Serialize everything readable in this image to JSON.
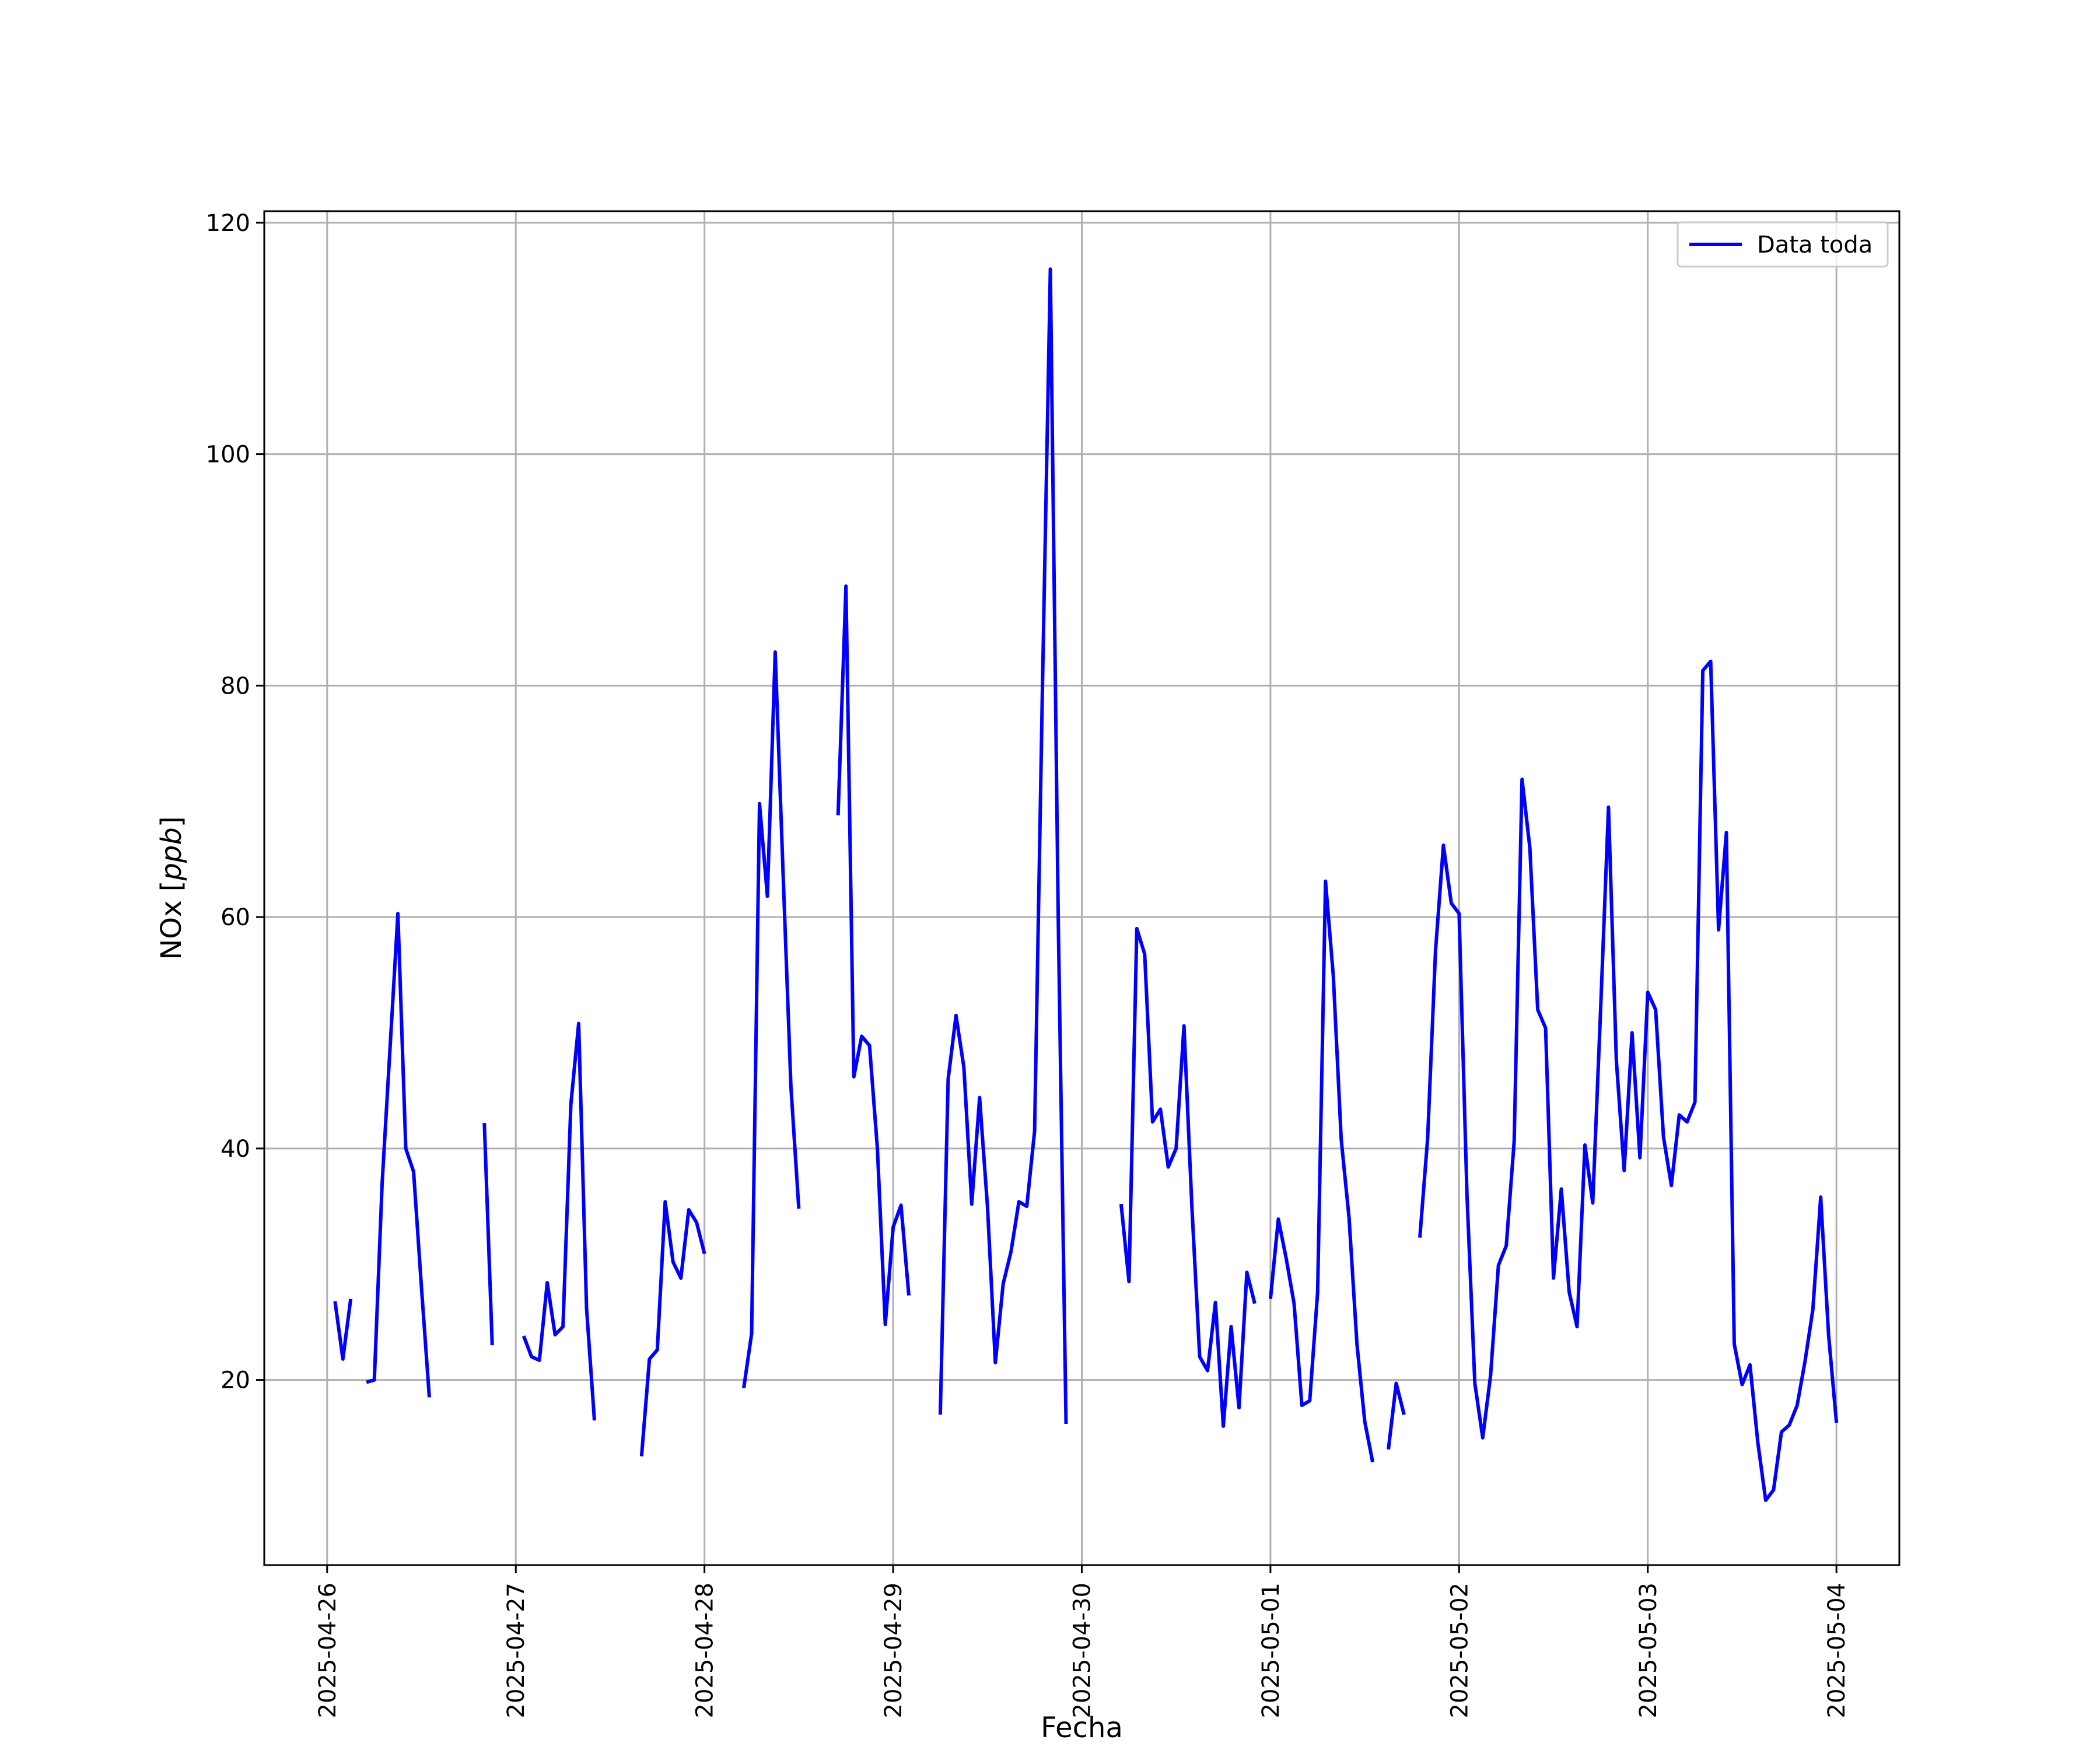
{
  "chart_data": {
    "type": "line",
    "title": "",
    "xlabel": "Fecha",
    "ylabel_main": "NOx [",
    "ylabel_unit": "ppb",
    "ylabel_end": "]",
    "x_ticks": [
      "2025-04-26",
      "2025-04-27",
      "2025-04-28",
      "2025-04-29",
      "2025-04-30",
      "2025-05-01",
      "2025-05-02",
      "2025-05-03",
      "2025-05-04"
    ],
    "y_ticks": [
      20,
      40,
      60,
      80,
      100,
      120
    ],
    "xlim": [
      "2025-04-25T16:00",
      "2025-05-04T08:00"
    ],
    "ylim": [
      4,
      121
    ],
    "grid": true,
    "legend_position": "top-right",
    "line_color": "#0000ff",
    "series": [
      {
        "name": "Data toda",
        "segments": [
          [
            [
              "2025-04-26T01:00",
              26.8
            ],
            [
              "2025-04-26T02:00",
              21.8
            ],
            [
              "2025-04-26T03:00",
              27.0
            ]
          ],
          [
            [
              "2025-04-26T05:00",
              19.8
            ],
            [
              "2025-04-26T06:00",
              20.0
            ],
            [
              "2025-04-26T07:00",
              37.0
            ],
            [
              "2025-04-26T09:00",
              60.3
            ],
            [
              "2025-04-26T10:00",
              40.0
            ],
            [
              "2025-04-26T11:00",
              38.0
            ],
            [
              "2025-04-26T12:00",
              28.0
            ],
            [
              "2025-04-26T13:00",
              18.5
            ]
          ],
          [
            [
              "2025-04-26T20:00",
              42.2
            ],
            [
              "2025-04-26T21:00",
              23.0
            ]
          ],
          [
            [
              "2025-04-27T01:00",
              23.8
            ],
            [
              "2025-04-27T02:00",
              22.0
            ],
            [
              "2025-04-27T03:00",
              21.7
            ],
            [
              "2025-04-27T04:00",
              28.4
            ],
            [
              "2025-04-27T05:00",
              23.9
            ],
            [
              "2025-04-27T06:00",
              24.6
            ],
            [
              "2025-04-27T07:00",
              43.8
            ],
            [
              "2025-04-27T08:00",
              50.8
            ],
            [
              "2025-04-27T09:00",
              26.2
            ],
            [
              "2025-04-27T10:00",
              16.5
            ]
          ],
          [
            [
              "2025-04-27T16:00",
              13.4
            ],
            [
              "2025-04-27T17:00",
              21.8
            ],
            [
              "2025-04-27T18:00",
              22.6
            ],
            [
              "2025-04-27T19:00",
              35.4
            ],
            [
              "2025-04-27T20:00",
              30.2
            ],
            [
              "2025-04-27T21:00",
              28.8
            ],
            [
              "2025-04-27T22:00",
              34.7
            ],
            [
              "2025-04-27T23:00",
              33.6
            ],
            [
              "2025-04-28T00:00",
              30.9
            ]
          ],
          [
            [
              "2025-04-28T05:00",
              19.3
            ],
            [
              "2025-04-28T06:00",
              24.0
            ],
            [
              "2025-04-28T07:00",
              69.8
            ],
            [
              "2025-04-28T08:00",
              61.8
            ],
            [
              "2025-04-28T09:00",
              82.9
            ],
            [
              "2025-04-28T10:00",
              63.8
            ],
            [
              "2025-04-28T11:00",
              45.3
            ],
            [
              "2025-04-28T12:00",
              34.8
            ]
          ],
          [
            [
              "2025-04-28T17:00",
              68.8
            ],
            [
              "2025-04-28T18:00",
              88.6
            ],
            [
              "2025-04-28T19:00",
              46.2
            ],
            [
              "2025-04-28T20:00",
              49.7
            ],
            [
              "2025-04-28T21:00",
              48.9
            ],
            [
              "2025-04-28T22:00",
              40.0
            ],
            [
              "2025-04-28T23:00",
              24.8
            ],
            [
              "2025-04-29T00:00",
              33.2
            ],
            [
              "2025-04-29T01:00",
              35.1
            ],
            [
              "2025-04-29T02:00",
              27.3
            ]
          ],
          [
            [
              "2025-04-29T06:00",
              17.0
            ],
            [
              "2025-04-29T07:00",
              46.0
            ],
            [
              "2025-04-29T08:00",
              51.5
            ],
            [
              "2025-04-29T09:00",
              47.0
            ],
            [
              "2025-04-29T10:00",
              35.2
            ],
            [
              "2025-04-29T11:00",
              44.4
            ],
            [
              "2025-04-29T12:00",
              35.0
            ],
            [
              "2025-04-29T13:00",
              21.5
            ],
            [
              "2025-04-29T14:00",
              28.3
            ],
            [
              "2025-04-29T15:00",
              31.1
            ],
            [
              "2025-04-29T16:00",
              35.4
            ],
            [
              "2025-04-29T17:00",
              35.0
            ],
            [
              "2025-04-29T18:00",
              41.5
            ],
            [
              "2025-04-29T19:00",
              80.0
            ],
            [
              "2025-04-29T20:00",
              116.0
            ],
            [
              "2025-04-29T21:00",
              60.0
            ],
            [
              "2025-04-29T22:00",
              16.2
            ]
          ],
          [
            [
              "2025-04-30T05:00",
              35.2
            ],
            [
              "2025-04-30T06:00",
              28.5
            ],
            [
              "2025-04-30T07:00",
              59.0
            ],
            [
              "2025-04-30T08:00",
              56.8
            ],
            [
              "2025-04-30T09:00",
              42.3
            ],
            [
              "2025-04-30T10:00",
              43.4
            ],
            [
              "2025-04-30T11:00",
              38.4
            ],
            [
              "2025-04-30T12:00",
              40.0
            ],
            [
              "2025-04-30T13:00",
              50.6
            ],
            [
              "2025-04-30T14:00",
              35.0
            ],
            [
              "2025-04-30T15:00",
              22.0
            ],
            [
              "2025-04-30T16:00",
              20.8
            ],
            [
              "2025-04-30T17:00",
              26.7
            ],
            [
              "2025-04-30T18:00",
              16.0
            ],
            [
              "2025-04-30T19:00",
              24.6
            ],
            [
              "2025-04-30T20:00",
              17.6
            ],
            [
              "2025-04-30T21:00",
              29.3
            ],
            [
              "2025-04-30T22:00",
              26.6
            ]
          ],
          [
            [
              "2025-05-01T00:00",
              27.0
            ],
            [
              "2025-05-01T01:00",
              33.9
            ],
            [
              "2025-05-01T02:00",
              30.5
            ],
            [
              "2025-05-01T03:00",
              26.6
            ],
            [
              "2025-05-01T04:00",
              17.8
            ],
            [
              "2025-05-01T05:00",
              18.2
            ],
            [
              "2025-05-01T06:00",
              27.6
            ],
            [
              "2025-05-01T07:00",
              63.1
            ],
            [
              "2025-05-01T08:00",
              54.9
            ],
            [
              "2025-05-01T09:00",
              40.8
            ],
            [
              "2025-05-01T10:00",
              34.0
            ],
            [
              "2025-05-01T11:00",
              23.1
            ],
            [
              "2025-05-01T12:00",
              16.4
            ],
            [
              "2025-05-01T13:00",
              12.9
            ]
          ],
          [
            [
              "2025-05-01T15:00",
              14.0
            ],
            [
              "2025-05-01T16:00",
              19.7
            ],
            [
              "2025-05-01T17:00",
              17.0
            ]
          ],
          [
            [
              "2025-05-01T19:00",
              32.3
            ],
            [
              "2025-05-01T20:00",
              40.9
            ],
            [
              "2025-05-01T21:00",
              57.1
            ],
            [
              "2025-05-01T22:00",
              66.2
            ],
            [
              "2025-05-01T23:00",
              61.2
            ],
            [
              "2025-05-02T00:00",
              60.3
            ],
            [
              "2025-05-02T01:00",
              36.0
            ],
            [
              "2025-05-02T02:00",
              19.7
            ],
            [
              "2025-05-02T03:00",
              15.0
            ],
            [
              "2025-05-02T04:00",
              20.4
            ],
            [
              "2025-05-02T05:00",
              29.9
            ],
            [
              "2025-05-02T06:00",
              31.6
            ],
            [
              "2025-05-02T07:00",
              40.6
            ],
            [
              "2025-05-02T08:00",
              71.9
            ],
            [
              "2025-05-02T09:00",
              66.0
            ],
            [
              "2025-05-02T10:00",
              52.0
            ],
            [
              "2025-05-02T11:00",
              50.4
            ],
            [
              "2025-05-02T12:00",
              28.8
            ],
            [
              "2025-05-02T13:00",
              36.5
            ],
            [
              "2025-05-02T14:00",
              27.6
            ],
            [
              "2025-05-02T15:00",
              24.6
            ],
            [
              "2025-05-02T16:00",
              40.3
            ],
            [
              "2025-05-02T17:00",
              35.3
            ],
            [
              "2025-05-02T18:00",
              52.0
            ],
            [
              "2025-05-02T19:00",
              69.5
            ],
            [
              "2025-05-02T20:00",
              47.6
            ],
            [
              "2025-05-02T21:00",
              38.1
            ],
            [
              "2025-05-02T22:00",
              50.0
            ],
            [
              "2025-05-02T23:00",
              39.2
            ],
            [
              "2025-05-03T00:00",
              53.5
            ],
            [
              "2025-05-03T01:00",
              52.0
            ],
            [
              "2025-05-03T02:00",
              41.0
            ],
            [
              "2025-05-03T03:00",
              36.8
            ],
            [
              "2025-05-03T04:00",
              42.9
            ],
            [
              "2025-05-03T05:00",
              42.3
            ],
            [
              "2025-05-03T06:00",
              44.0
            ],
            [
              "2025-05-03T07:00",
              81.3
            ],
            [
              "2025-05-03T08:00",
              82.1
            ],
            [
              "2025-05-03T09:00",
              58.9
            ],
            [
              "2025-05-03T10:00",
              67.3
            ],
            [
              "2025-05-03T11:00",
              23.1
            ],
            [
              "2025-05-03T12:00",
              19.6
            ],
            [
              "2025-05-03T13:00",
              21.3
            ],
            [
              "2025-05-03T14:00",
              14.6
            ],
            [
              "2025-05-03T15:00",
              9.6
            ],
            [
              "2025-05-03T16:00",
              10.5
            ],
            [
              "2025-05-03T17:00",
              15.5
            ],
            [
              "2025-05-03T18:00",
              16.1
            ],
            [
              "2025-05-03T19:00",
              17.8
            ],
            [
              "2025-05-03T20:00",
              21.6
            ],
            [
              "2025-05-03T21:00",
              26.1
            ],
            [
              "2025-05-03T22:00",
              35.8
            ],
            [
              "2025-05-03T23:00",
              23.9
            ],
            [
              "2025-05-04T00:00",
              16.3
            ]
          ]
        ]
      }
    ]
  }
}
